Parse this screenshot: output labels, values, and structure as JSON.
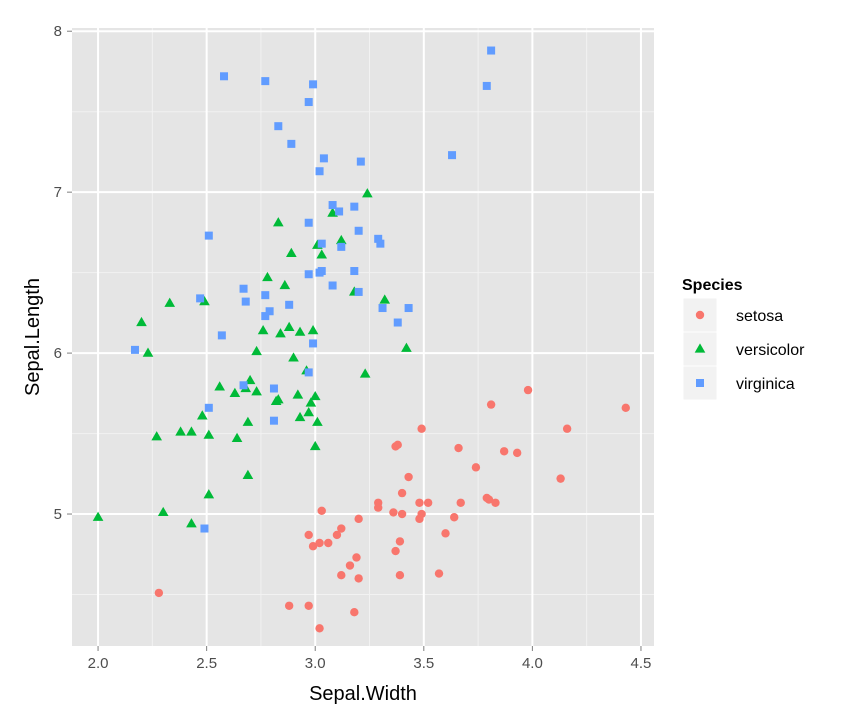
{
  "chart_data": {
    "type": "scatter",
    "xlabel": "Sepal.Width",
    "ylabel": "Sepal.Length",
    "xlim": [
      1.88,
      4.56
    ],
    "ylim": [
      4.18,
      8.02
    ],
    "x_ticks": [
      2.0,
      2.5,
      3.0,
      3.5,
      4.0,
      4.5
    ],
    "x_tick_labels": [
      "2.0",
      "2.5",
      "3.0",
      "3.5",
      "4.0",
      "4.5"
    ],
    "y_ticks": [
      5,
      6,
      7,
      8
    ],
    "y_tick_labels": [
      "5",
      "6",
      "7",
      "8"
    ],
    "grid": true,
    "legend": {
      "title": "Species",
      "position": "right"
    },
    "series": [
      {
        "name": "setosa",
        "color": "#F8766D",
        "shape": "circle",
        "points": [
          [
            2.28,
            4.51
          ],
          [
            2.88,
            4.43
          ],
          [
            2.97,
            4.43
          ],
          [
            3.02,
            4.29
          ],
          [
            3.18,
            4.39
          ],
          [
            3.2,
            4.6
          ],
          [
            3.12,
            4.62
          ],
          [
            3.16,
            4.68
          ],
          [
            3.19,
            4.73
          ],
          [
            2.97,
            4.87
          ],
          [
            2.99,
            4.8
          ],
          [
            3.02,
            4.82
          ],
          [
            3.06,
            4.82
          ],
          [
            3.1,
            4.87
          ],
          [
            3.12,
            4.91
          ],
          [
            3.2,
            4.97
          ],
          [
            3.03,
            5.02
          ],
          [
            3.29,
            5.07
          ],
          [
            3.29,
            5.04
          ],
          [
            3.36,
            5.01
          ],
          [
            3.37,
            4.77
          ],
          [
            3.39,
            4.83
          ],
          [
            3.39,
            4.62
          ],
          [
            3.4,
            5.0
          ],
          [
            3.48,
            4.97
          ],
          [
            3.49,
            5.0
          ],
          [
            3.57,
            4.63
          ],
          [
            3.6,
            4.88
          ],
          [
            3.64,
            4.98
          ],
          [
            3.67,
            5.07
          ],
          [
            3.48,
            5.07
          ],
          [
            3.52,
            5.07
          ],
          [
            3.4,
            5.13
          ],
          [
            3.43,
            5.23
          ],
          [
            3.37,
            5.42
          ],
          [
            3.38,
            5.43
          ],
          [
            3.49,
            5.53
          ],
          [
            3.66,
            5.41
          ],
          [
            3.74,
            5.29
          ],
          [
            3.79,
            5.1
          ],
          [
            3.8,
            5.09
          ],
          [
            3.83,
            5.07
          ],
          [
            3.87,
            5.39
          ],
          [
            3.93,
            5.38
          ],
          [
            3.81,
            5.68
          ],
          [
            3.98,
            5.77
          ],
          [
            4.13,
            5.22
          ],
          [
            4.16,
            5.53
          ],
          [
            4.43,
            5.66
          ]
        ]
      },
      {
        "name": "versicolor",
        "color": "#00BA38",
        "shape": "triangle",
        "points": [
          [
            2.0,
            4.98
          ],
          [
            2.3,
            5.01
          ],
          [
            2.43,
            4.94
          ],
          [
            2.51,
            5.12
          ],
          [
            2.69,
            5.24
          ],
          [
            2.27,
            5.48
          ],
          [
            2.38,
            5.51
          ],
          [
            2.43,
            5.51
          ],
          [
            2.51,
            5.49
          ],
          [
            2.64,
            5.47
          ],
          [
            2.69,
            5.57
          ],
          [
            2.73,
            5.76
          ],
          [
            2.48,
            5.61
          ],
          [
            2.56,
            5.79
          ],
          [
            2.63,
            5.75
          ],
          [
            2.68,
            5.78
          ],
          [
            2.7,
            5.83
          ],
          [
            2.83,
            5.71
          ],
          [
            2.82,
            5.7
          ],
          [
            2.93,
            5.6
          ],
          [
            2.97,
            5.63
          ],
          [
            3.0,
            5.42
          ],
          [
            3.01,
            5.57
          ],
          [
            2.98,
            5.69
          ],
          [
            3.0,
            5.73
          ],
          [
            2.92,
            5.74
          ],
          [
            2.9,
            5.97
          ],
          [
            2.96,
            5.89
          ],
          [
            2.23,
            6.0
          ],
          [
            2.2,
            6.19
          ],
          [
            2.33,
            6.31
          ],
          [
            2.49,
            6.32
          ],
          [
            2.73,
            6.01
          ],
          [
            2.76,
            6.14
          ],
          [
            2.84,
            6.12
          ],
          [
            2.88,
            6.16
          ],
          [
            2.93,
            6.13
          ],
          [
            2.99,
            6.14
          ],
          [
            2.78,
            6.47
          ],
          [
            2.86,
            6.42
          ],
          [
            2.89,
            6.62
          ],
          [
            2.83,
            6.81
          ],
          [
            3.01,
            6.67
          ],
          [
            3.03,
            6.61
          ],
          [
            3.12,
            6.7
          ],
          [
            3.08,
            6.87
          ],
          [
            3.24,
            6.99
          ],
          [
            3.18,
            6.38
          ],
          [
            3.32,
            6.33
          ],
          [
            3.42,
            6.03
          ],
          [
            3.23,
            5.87
          ]
        ]
      },
      {
        "name": "virginica",
        "color": "#619CFF",
        "shape": "square",
        "points": [
          [
            2.49,
            4.91
          ],
          [
            2.51,
            5.66
          ],
          [
            2.67,
            5.8
          ],
          [
            2.81,
            5.78
          ],
          [
            2.81,
            5.58
          ],
          [
            2.97,
            5.88
          ],
          [
            2.99,
            6.06
          ],
          [
            2.17,
            6.02
          ],
          [
            2.57,
            6.11
          ],
          [
            2.47,
            6.34
          ],
          [
            2.68,
            6.32
          ],
          [
            2.67,
            6.4
          ],
          [
            2.77,
            6.23
          ],
          [
            2.77,
            6.36
          ],
          [
            2.79,
            6.26
          ],
          [
            2.88,
            6.3
          ],
          [
            2.97,
            6.49
          ],
          [
            3.02,
            6.5
          ],
          [
            3.03,
            6.51
          ],
          [
            3.08,
            6.42
          ],
          [
            3.18,
            6.51
          ],
          [
            3.2,
            6.38
          ],
          [
            3.31,
            6.28
          ],
          [
            3.38,
            6.19
          ],
          [
            3.43,
            6.28
          ],
          [
            3.12,
            6.66
          ],
          [
            3.29,
            6.71
          ],
          [
            3.3,
            6.68
          ],
          [
            3.03,
            6.68
          ],
          [
            2.51,
            6.73
          ],
          [
            2.97,
            6.81
          ],
          [
            3.11,
            6.88
          ],
          [
            3.08,
            6.92
          ],
          [
            3.18,
            6.91
          ],
          [
            3.2,
            6.76
          ],
          [
            3.02,
            7.13
          ],
          [
            3.04,
            7.21
          ],
          [
            3.21,
            7.19
          ],
          [
            2.89,
            7.3
          ],
          [
            2.83,
            7.41
          ],
          [
            2.97,
            7.56
          ],
          [
            2.99,
            7.67
          ],
          [
            2.77,
            7.69
          ],
          [
            2.58,
            7.72
          ],
          [
            3.63,
            7.23
          ],
          [
            3.79,
            7.66
          ],
          [
            3.81,
            7.88
          ]
        ]
      }
    ]
  }
}
